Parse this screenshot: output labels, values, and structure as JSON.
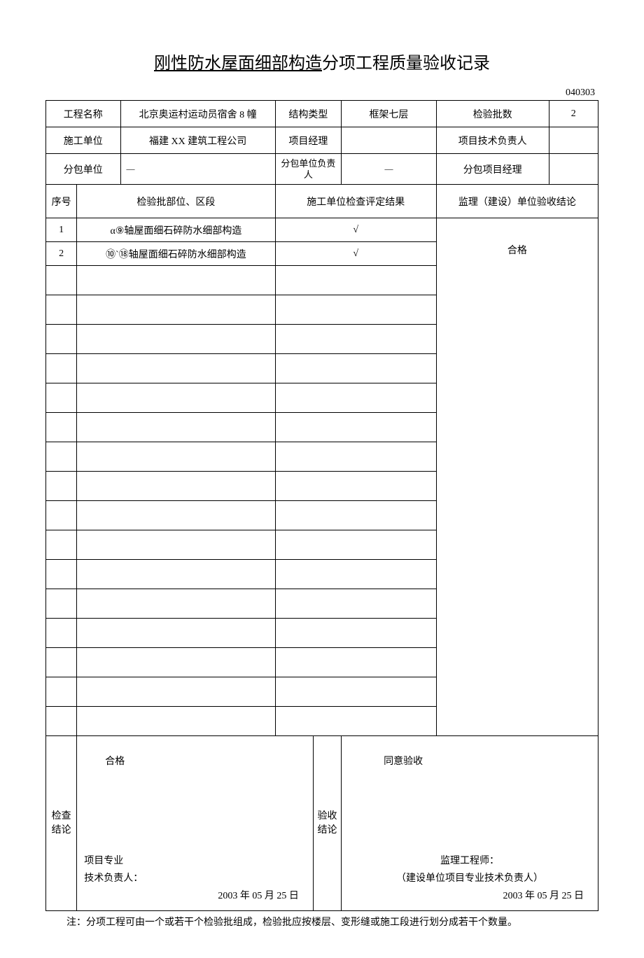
{
  "title_underline": "刚性防水屋面细部构造",
  "title_rest": "分项工程质量验收记录",
  "doc_number": "040303",
  "header": {
    "project_name_label": "工程名称",
    "project_name_value": "北京奥运村运动员宿舍 8 幢",
    "structure_type_label": "结构类型",
    "structure_type_value": "框架七层",
    "batch_count_label": "检验批数",
    "batch_count_value": "2",
    "construction_unit_label": "施工单位",
    "construction_unit_value": "福建 XX 建筑工程公司",
    "project_manager_label": "项目经理",
    "project_manager_value": "",
    "tech_lead_label": "项目技术负责人",
    "tech_lead_value": "",
    "subcontractor_label": "分包单位",
    "subcontractor_value": "—",
    "subcontractor_lead_label": "分包单位负责人",
    "subcontractor_lead_value": "—",
    "sub_pm_label": "分包项目经理",
    "sub_pm_value": ""
  },
  "columns": {
    "seq": "序号",
    "section": "检验批部位、区段",
    "construction_result": "施工单位检查评定结果",
    "supervision_result": "监理（建设）单位验收结论"
  },
  "rows": [
    {
      "seq": "1",
      "section": "α⑨轴屋面细石碎防水细部构造",
      "result": "√"
    },
    {
      "seq": "2",
      "section": "⑩`⑱轴屋面细石碎防水细部构造",
      "result": "√"
    }
  ],
  "supervision_conclusion": "合格",
  "empty_row_count": 16,
  "footer": {
    "check_label": "检查结论",
    "check_top": "合格",
    "check_sig1": "项目专业",
    "check_sig2": "技术负责人：",
    "check_date": "2003 年 05 月 25 日",
    "accept_label": "验收结论",
    "accept_top": "同意验收",
    "accept_sig1": "监理工程师：",
    "accept_sig2": "（建设单位项目专业技术负责人）",
    "accept_date": "2003 年 05 月 25 日"
  },
  "footnote": "注：分项工程可由一个或若干个检验批组成，检验批应按楼层、变形缝或施工段进行划分成若干个数量。",
  "style": {
    "page_bg": "#ffffff",
    "text_color": "#000000",
    "border_color": "#000000",
    "title_fontsize": 24,
    "body_fontsize": 14
  }
}
